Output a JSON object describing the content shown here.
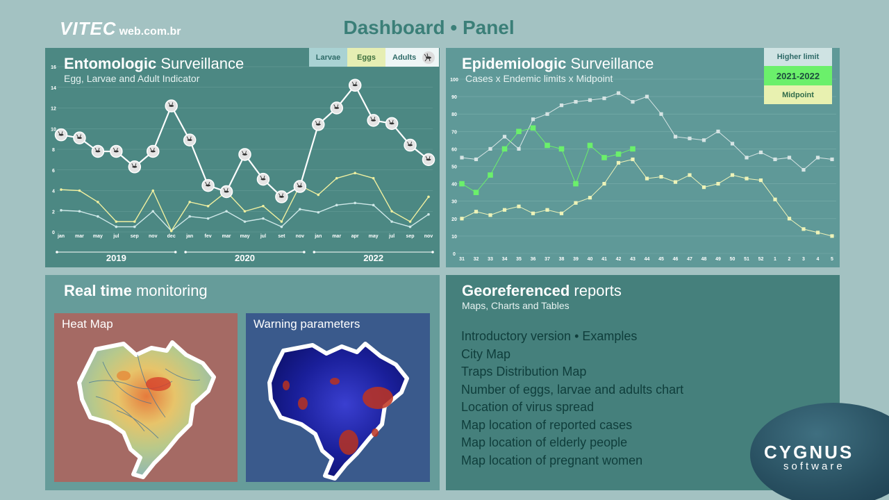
{
  "header": {
    "logo_main": "VITEC",
    "logo_sub": "web.com.br",
    "title": "Dashboard • Panel"
  },
  "entomologic": {
    "title_bold": "Entomologic",
    "title_light": "Surveillance",
    "subtitle": "Egg, Larvae and Adult Indicator",
    "legend": [
      "Larvae",
      "Eggs",
      "Adults"
    ],
    "years": [
      "2019",
      "2020",
      "2022"
    ]
  },
  "epidemiologic": {
    "title_bold": "Epidemiologic",
    "title_light": "Surveillance",
    "subtitle": "Cases x Endemic limits x Midpoint",
    "legend": [
      "Higher limit",
      "2021-2022",
      "Midpoint"
    ]
  },
  "realtime": {
    "title_bold": "Real time",
    "title_light": "monitoring",
    "heatmap_label": "Heat Map",
    "warning_label": "Warning  parameters"
  },
  "georeferenced": {
    "title_bold": "Georeferenced",
    "title_light": "reports",
    "subtitle": "Maps, Charts and Tables",
    "items": [
      "Introductory version • Examples",
      "City Map",
      "Traps Distribution Map",
      "Number of eggs, larvae and adults chart",
      "Location of virus spread",
      "Map location of reported cases",
      "Map location of elderly people",
      "Map location of pregnant women"
    ]
  },
  "footer": {
    "brand": "CYGNUS",
    "brand_sub": "software"
  },
  "colors": {
    "background": "#a3c2c2",
    "title_accent": "#3b7f78",
    "adults_line": "#ffffff",
    "eggs_line": "#f0f0a0",
    "larvae_line": "#cfe8e8",
    "higher_limit": "#c8d8d8",
    "cases": "#66f066",
    "midpoint": "#e8f0a8"
  },
  "chart_data": [
    {
      "type": "line",
      "title": "Entomologic Surveillance",
      "subtitle": "Egg, Larvae and Adult Indicator",
      "x": [
        "jan",
        "mar",
        "may",
        "jul",
        "sep",
        "nov",
        "dec",
        "jan",
        "fev",
        "mar",
        "may",
        "jul",
        "set",
        "nov",
        "jan",
        "mar",
        "apr",
        "may",
        "jul",
        "sep",
        "nov"
      ],
      "ylim": [
        0,
        16
      ],
      "yticks": [
        0,
        2,
        4,
        6,
        8,
        10,
        12,
        14,
        16
      ],
      "groups": [
        "2019",
        "2020",
        "2022"
      ],
      "series": [
        {
          "name": "Adults",
          "values": [
            9.4,
            9.1,
            7.8,
            7.8,
            6.3,
            7.8,
            12.2,
            8.9,
            4.5,
            3.9,
            7.5,
            5.1,
            3.4,
            4.4,
            10.4,
            12.0,
            14.2,
            10.8,
            10.5,
            8.4,
            7.0
          ]
        },
        {
          "name": "Eggs",
          "values": [
            4.1,
            4.0,
            2.9,
            1.0,
            1.0,
            4.0,
            0.1,
            2.9,
            2.5,
            3.9,
            2.0,
            2.5,
            1.0,
            4.5,
            3.6,
            5.2,
            5.7,
            5.2,
            2.0,
            1.0,
            3.4
          ]
        },
        {
          "name": "Larvae",
          "values": [
            2.1,
            2.0,
            1.5,
            0.5,
            0.5,
            2.0,
            0.1,
            1.5,
            1.3,
            2.0,
            1.0,
            1.3,
            0.5,
            2.2,
            1.9,
            2.6,
            2.8,
            2.6,
            1.0,
            0.5,
            1.7
          ]
        }
      ],
      "grid": true,
      "legend": "top-right"
    },
    {
      "type": "line",
      "title": "Epidemiologic Surveillance",
      "subtitle": "Cases x Endemic limits x Midpoint",
      "x": [
        "31",
        "32",
        "33",
        "34",
        "35",
        "36",
        "37",
        "38",
        "39",
        "40",
        "41",
        "42",
        "43",
        "44",
        "45",
        "46",
        "47",
        "48",
        "49",
        "50",
        "51",
        "52",
        "1",
        "2",
        "3",
        "4",
        "5"
      ],
      "ylim": [
        0,
        100
      ],
      "yticks": [
        0,
        10,
        20,
        30,
        40,
        50,
        60,
        70,
        80,
        90,
        100
      ],
      "series": [
        {
          "name": "Higher limit",
          "values": [
            55,
            54,
            60,
            67,
            60,
            77,
            80,
            85,
            87,
            88,
            89,
            92,
            87,
            90,
            80,
            67,
            66,
            65,
            70,
            63,
            55,
            58,
            54,
            55,
            48,
            55,
            54
          ]
        },
        {
          "name": "2021-2022",
          "values": [
            40,
            35,
            45,
            60,
            70,
            72,
            62,
            60,
            40,
            62,
            55,
            57,
            60,
            null,
            null,
            null,
            null,
            null,
            null,
            null,
            null,
            null,
            null,
            null,
            null,
            null,
            null
          ]
        },
        {
          "name": "Midpoint",
          "values": [
            20,
            24,
            22,
            25,
            27,
            23,
            25,
            23,
            29,
            32,
            40,
            52,
            54,
            43,
            44,
            41,
            45,
            38,
            40,
            45,
            43,
            42,
            31,
            20,
            14,
            12,
            10
          ]
        }
      ],
      "grid": true,
      "legend": "top-right"
    }
  ]
}
